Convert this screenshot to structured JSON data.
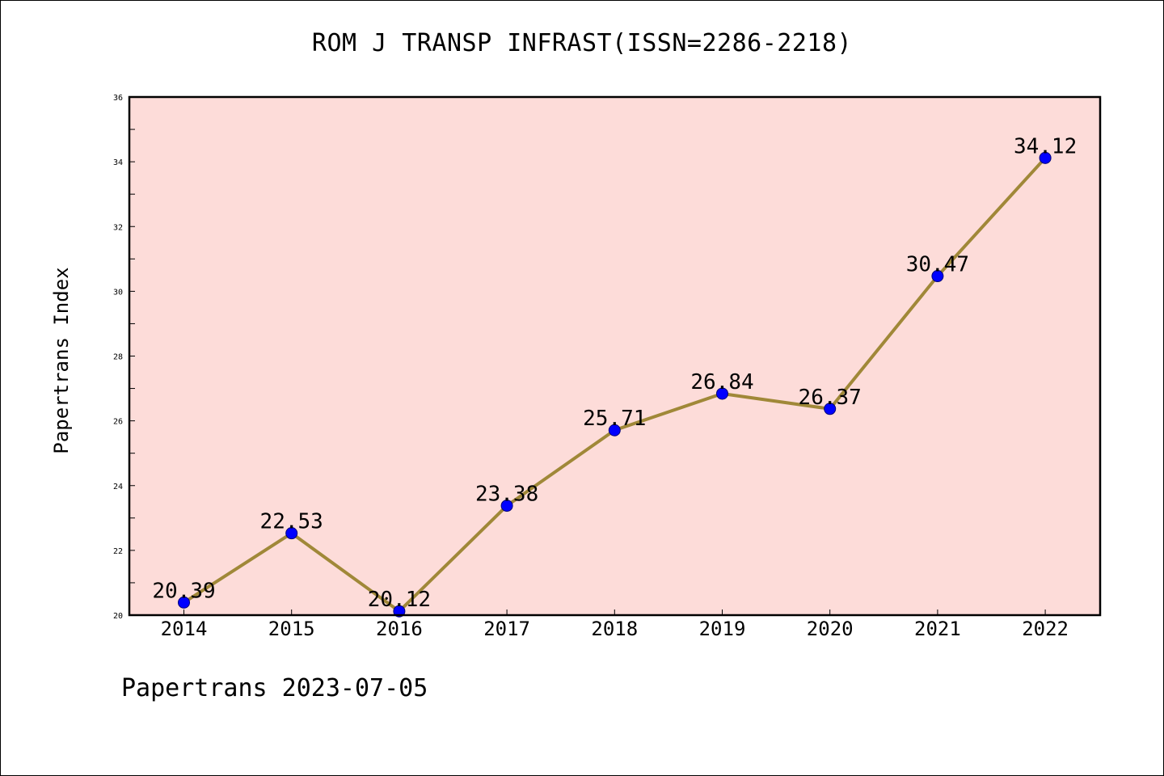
{
  "title": "ROM J TRANSP INFRAST(ISSN=2286-2218)",
  "footer": "Papertrans 2023-07-05",
  "colors": {
    "plot_background": "#fddcd9",
    "line": "#a08838",
    "marker": "#0000ff",
    "axis": "#000000"
  },
  "chart_data": {
    "type": "line",
    "title": "ROM J TRANSP INFRAST(ISSN=2286-2218)",
    "xlabel": "",
    "ylabel": "Papertrans Index",
    "categories": [
      "2014",
      "2015",
      "2016",
      "2017",
      "2018",
      "2019",
      "2020",
      "2021",
      "2022"
    ],
    "series": [
      {
        "values": [
          20.39,
          22.53,
          20.12,
          23.38,
          25.71,
          26.84,
          26.37,
          30.47,
          34.12
        ],
        "labels": [
          "20.39",
          "22.53",
          "20.12",
          "23.38",
          "25.71",
          "26.84",
          "26.37",
          "30.47",
          "34.12"
        ]
      }
    ],
    "ylim": [
      20,
      36
    ],
    "yticks": [
      "20",
      "22",
      "24",
      "26",
      "28",
      "30",
      "32",
      "34",
      "36"
    ],
    "grid": false,
    "legend": "none"
  }
}
